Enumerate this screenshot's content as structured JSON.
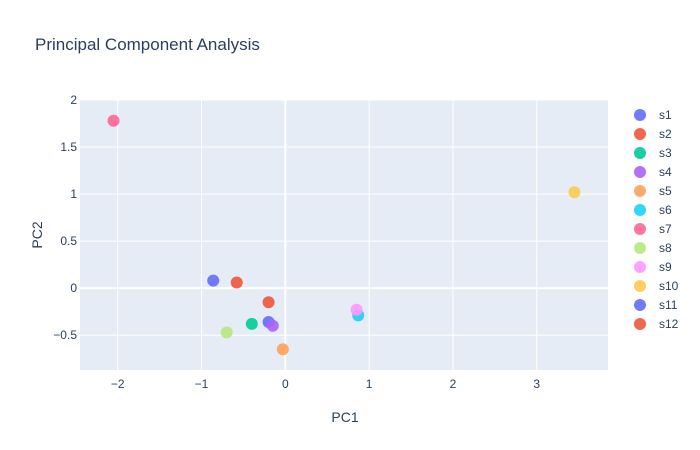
{
  "chart_data": {
    "type": "scatter",
    "title": "Principal Component Analysis",
    "xlabel": "PC1",
    "ylabel": "PC2",
    "xlim": [
      -2.45,
      3.85
    ],
    "ylim": [
      -0.87,
      2.0
    ],
    "xticks": [
      -2,
      -1,
      0,
      1,
      2,
      3
    ],
    "yticks": [
      -0.5,
      0,
      0.5,
      1,
      1.5,
      2
    ],
    "xtick_labels": [
      "−2",
      "−1",
      "0",
      "1",
      "2",
      "3"
    ],
    "ytick_labels": [
      "−0.5",
      "0",
      "0.5",
      "1",
      "1.5",
      "2"
    ],
    "grid": true,
    "legend_position": "right",
    "plot_background": "#e5ecf6",
    "series": [
      {
        "name": "s1",
        "color": "#636efa",
        "x": [
          -0.2
        ],
        "y": [
          -0.36
        ]
      },
      {
        "name": "s2",
        "color": "#ef553b",
        "x": [
          -0.2
        ],
        "y": [
          -0.15
        ]
      },
      {
        "name": "s3",
        "color": "#00cc96",
        "x": [
          -0.4
        ],
        "y": [
          -0.38
        ]
      },
      {
        "name": "s4",
        "color": "#ab63fa",
        "x": [
          -0.15
        ],
        "y": [
          -0.4
        ]
      },
      {
        "name": "s5",
        "color": "#ffa15a",
        "x": [
          -0.03
        ],
        "y": [
          -0.65
        ]
      },
      {
        "name": "s6",
        "color": "#19d3f3",
        "x": [
          0.87
        ],
        "y": [
          -0.29
        ]
      },
      {
        "name": "s7",
        "color": "#ff6692",
        "x": [
          -2.05
        ],
        "y": [
          1.78
        ]
      },
      {
        "name": "s8",
        "color": "#b6e880",
        "x": [
          -0.7
        ],
        "y": [
          -0.47
        ]
      },
      {
        "name": "s9",
        "color": "#ff97ff",
        "x": [
          0.85
        ],
        "y": [
          -0.23
        ]
      },
      {
        "name": "s10",
        "color": "#fecb52",
        "x": [
          3.45
        ],
        "y": [
          1.02
        ]
      },
      {
        "name": "s11",
        "color": "#636efa",
        "x": [
          -0.86
        ],
        "y": [
          0.08
        ]
      },
      {
        "name": "s12",
        "color": "#ef553b",
        "x": [
          -0.58
        ],
        "y": [
          0.06
        ]
      }
    ]
  }
}
